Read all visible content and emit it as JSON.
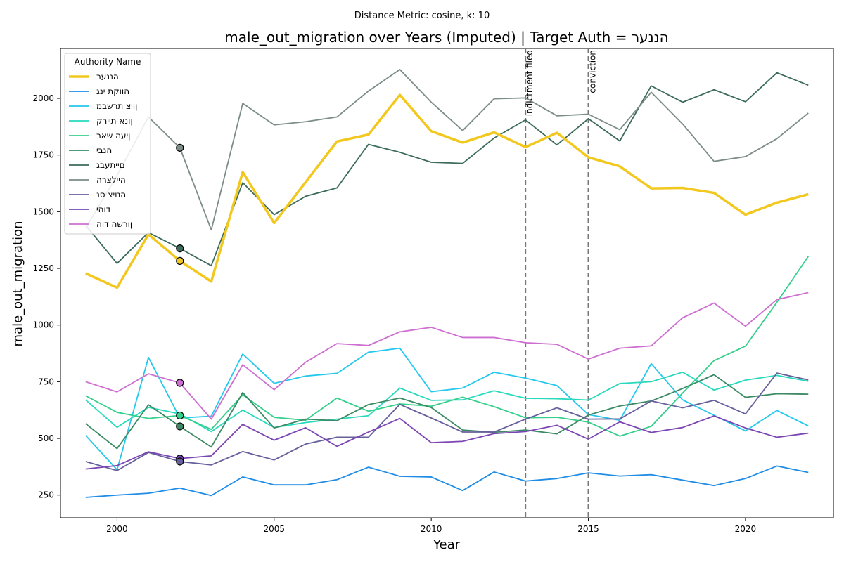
{
  "chart_data": {
    "type": "line",
    "suptitle": "Distance Metric: cosine, k: 10",
    "title": "male_out_migration over Years (Imputed) | Target Auth = הננער",
    "xlabel": "Year",
    "ylabel": "male_out_migration",
    "xlim": [
      1998.2,
      2022.8
    ],
    "ylim": [
      150,
      2220
    ],
    "x_ticks": [
      2000,
      2005,
      2010,
      2015,
      2020
    ],
    "y_ticks": [
      250,
      500,
      750,
      1000,
      1250,
      1500,
      1750,
      2000
    ],
    "grid": false,
    "legend": {
      "title": "Authority Name",
      "placement": "top-left"
    },
    "x": [
      1999,
      2000,
      2001,
      2002,
      2003,
      2004,
      2005,
      2006,
      2007,
      2008,
      2009,
      2010,
      2011,
      2012,
      2013,
      2014,
      2015,
      2016,
      2017,
      2018,
      2019,
      2020,
      2021,
      2022
    ],
    "series": [
      {
        "name": "הננער",
        "color": "#f2c81e",
        "width": 3.5,
        "values": [
          1228,
          1165,
          1400,
          1283,
          1192,
          1675,
          1450,
          1630,
          1810,
          1840,
          2015,
          1855,
          1805,
          1850,
          1785,
          1848,
          1740,
          1700,
          1603,
          1605,
          1583,
          1487,
          1540,
          1577
        ]
      },
      {
        "name": "הווקת ינג",
        "color": "#1f8ce6",
        "width": 1.8,
        "values": [
          240,
          250,
          258,
          281,
          248,
          330,
          295,
          295,
          318,
          373,
          333,
          330,
          270,
          352,
          312,
          323,
          348,
          334,
          340,
          316,
          292,
          323,
          378,
          350
        ]
      },
      {
        "name": "ןויצ תרשבמ",
        "color": "#24c8ec",
        "width": 1.8,
        "values": [
          513,
          362,
          857,
          590,
          598,
          872,
          743,
          775,
          787,
          880,
          898,
          706,
          722,
          792,
          766,
          733,
          605,
          580,
          830,
          670,
          602,
          533,
          623,
          555
        ]
      },
      {
        "name": "ןונא תיירק",
        "color": "#28d9be",
        "width": 1.8,
        "values": [
          670,
          549,
          637,
          608,
          530,
          625,
          548,
          570,
          585,
          600,
          722,
          668,
          670,
          710,
          677,
          675,
          669,
          742,
          750,
          792,
          713,
          757,
          778,
          752
        ]
      },
      {
        "name": "ןיעה שאר",
        "color": "#35cf8c",
        "width": 1.8,
        "values": [
          688,
          615,
          588,
          601,
          540,
          692,
          593,
          580,
          678,
          620,
          652,
          642,
          682,
          640,
          591,
          593,
          572,
          510,
          553,
          700,
          843,
          907,
          1100,
          1303
        ]
      },
      {
        "name": "הנבי",
        "color": "#3b8a64",
        "width": 1.8,
        "values": [
          565,
          455,
          648,
          553,
          462,
          702,
          546,
          585,
          578,
          649,
          678,
          636,
          537,
          527,
          537,
          520,
          603,
          643,
          665,
          720,
          781,
          681,
          697,
          695
        ]
      },
      {
        "name": "םייתעבג",
        "color": "#3c6a5b",
        "width": 1.8,
        "values": [
          1440,
          1272,
          1408,
          1338,
          1262,
          1628,
          1487,
          1568,
          1605,
          1797,
          1762,
          1718,
          1713,
          1825,
          1905,
          1795,
          1910,
          1812,
          2055,
          1983,
          2038,
          1985,
          2113,
          2058
        ]
      },
      {
        "name": "היילצרה",
        "color": "#7c8d88",
        "width": 1.8,
        "values": [
          1427,
          1660,
          1918,
          1782,
          1420,
          1978,
          1883,
          1897,
          1918,
          2032,
          2127,
          1983,
          1858,
          1998,
          2002,
          1923,
          1930,
          1862,
          2027,
          1887,
          1722,
          1743,
          1822,
          1935
        ]
      },
      {
        "name": "הנויצ סנ",
        "color": "#655f9b",
        "width": 1.8,
        "values": [
          398,
          358,
          438,
          398,
          383,
          442,
          405,
          475,
          505,
          505,
          650,
          590,
          528,
          528,
          585,
          635,
          585,
          586,
          665,
          635,
          668,
          608,
          788,
          758
        ]
      },
      {
        "name": "דוהי",
        "color": "#7b45b3",
        "width": 1.8,
        "values": [
          365,
          380,
          441,
          411,
          423,
          562,
          492,
          547,
          465,
          528,
          588,
          481,
          487,
          521,
          530,
          558,
          497,
          573,
          526,
          548,
          599,
          546,
          505,
          523
        ]
      },
      {
        "name": "ןורשה דוה",
        "color": "#cd6fd1",
        "width": 1.8,
        "values": [
          750,
          705,
          785,
          745,
          585,
          825,
          715,
          836,
          918,
          910,
          970,
          990,
          945,
          945,
          922,
          915,
          850,
          898,
          908,
          1032,
          1097,
          995,
          1112,
          1143
        ]
      }
    ],
    "imputed_points": [
      {
        "x": 2002,
        "y": 1782,
        "color": "#7c8d88"
      },
      {
        "x": 2002,
        "y": 1338,
        "color": "#3c6a5b"
      },
      {
        "x": 2002,
        "y": 1283,
        "color": "#f2c81e"
      },
      {
        "x": 2002,
        "y": 745,
        "color": "#cd6fd1"
      },
      {
        "x": 2002,
        "y": 601,
        "color": "#35cf8c"
      },
      {
        "x": 2002,
        "y": 553,
        "color": "#3b8a64"
      },
      {
        "x": 2002,
        "y": 411,
        "color": "#7b45b3"
      },
      {
        "x": 2002,
        "y": 398,
        "color": "#655f9b"
      }
    ],
    "event_lines": [
      {
        "x": 2013,
        "label": "indictment filed"
      },
      {
        "x": 2015,
        "label": "conviction"
      }
    ]
  }
}
